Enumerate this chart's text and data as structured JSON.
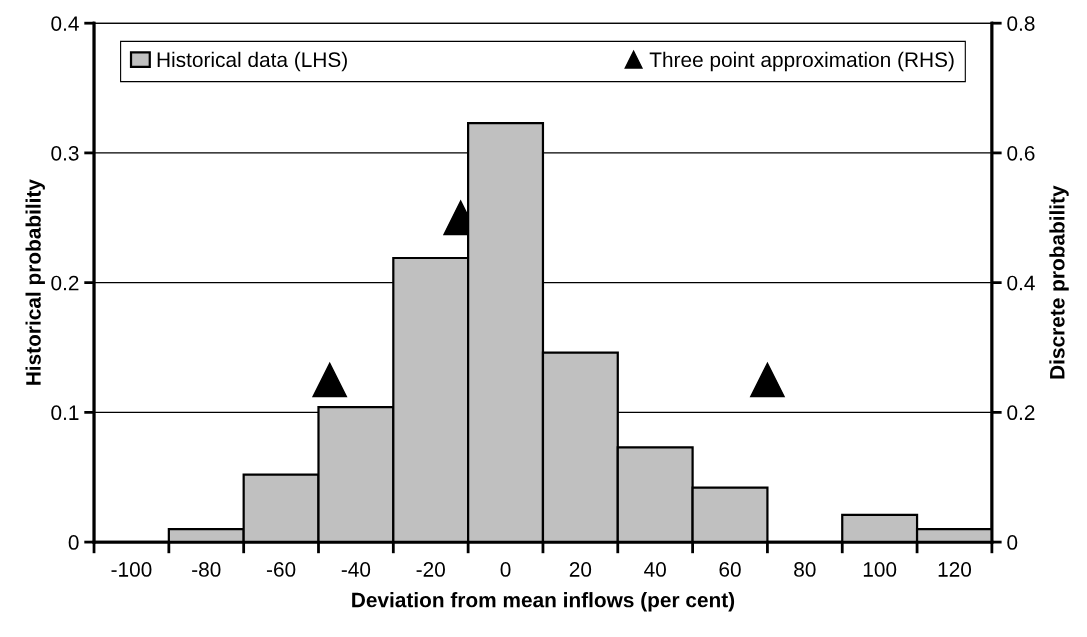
{
  "chart_data": {
    "type": "histogram",
    "xlabel": "Deviation from mean inflows (per cent)",
    "ylabel": "Historical probability",
    "y2label": "Discrete probability",
    "bins": [
      -110,
      -90,
      -70,
      -50,
      -30,
      -10,
      10,
      30,
      50,
      70,
      90,
      110,
      130
    ],
    "series": [
      {
        "name": "Historical data (LHS)",
        "color": "#c0c0c0",
        "values": [
          0,
          0.01,
          0.052,
          0.104,
          0.219,
          0.323,
          0.146,
          0.073,
          0.042,
          0,
          0.021,
          0.01
        ]
      },
      {
        "name": "Three point approximation (RHS)",
        "type": "scatter",
        "axis": "y2",
        "marker": "triangle",
        "color": "#000000",
        "x": [
          -47,
          -12,
          70
        ],
        "values": [
          0.25,
          0.5,
          0.25
        ]
      }
    ],
    "xlim": [
      -110,
      130
    ],
    "xticks": [
      {
        "value": -110,
        "label": null
      },
      {
        "value": -100,
        "label": "-100"
      },
      {
        "value": -90,
        "label": null
      },
      {
        "value": -80,
        "label": "-80"
      },
      {
        "value": -70,
        "label": null
      },
      {
        "value": -60,
        "label": "-60"
      },
      {
        "value": -50,
        "label": null
      },
      {
        "value": -40,
        "label": "-40"
      },
      {
        "value": -30,
        "label": null
      },
      {
        "value": -20,
        "label": "-20"
      },
      {
        "value": -10,
        "label": null
      },
      {
        "value": 0,
        "label": "0"
      },
      {
        "value": 10,
        "label": null
      },
      {
        "value": 20,
        "label": "20"
      },
      {
        "value": 30,
        "label": null
      },
      {
        "value": 40,
        "label": "40"
      },
      {
        "value": 50,
        "label": null
      },
      {
        "value": 60,
        "label": "60"
      },
      {
        "value": 70,
        "label": null
      },
      {
        "value": 80,
        "label": "80"
      },
      {
        "value": 90,
        "label": null
      },
      {
        "value": 100,
        "label": "100"
      },
      {
        "value": 110,
        "label": null
      },
      {
        "value": 120,
        "label": "120"
      },
      {
        "value": 130,
        "label": null
      }
    ],
    "ylim": [
      0,
      0.4
    ],
    "yticks": [
      0,
      0.1,
      0.2,
      0.3,
      0.4
    ],
    "y2lim": [
      0,
      0.8
    ],
    "y2ticks": [
      0,
      0.2,
      0.4,
      0.6,
      0.8
    ],
    "grid": "y",
    "legend": "top"
  }
}
